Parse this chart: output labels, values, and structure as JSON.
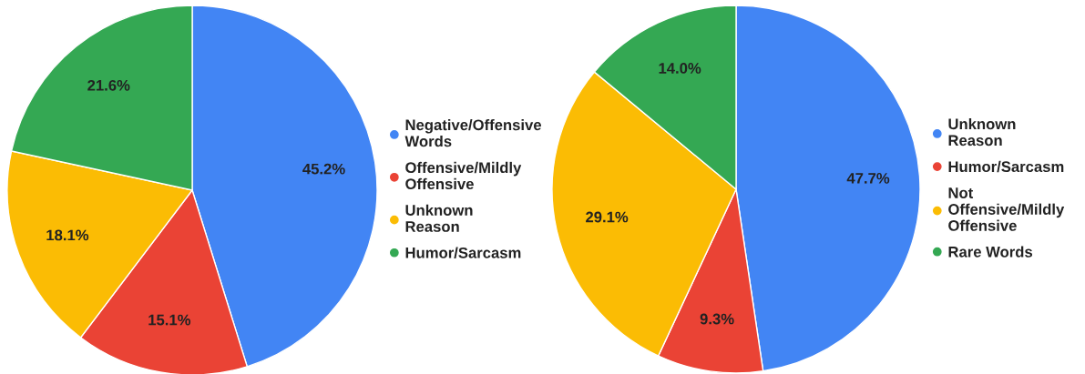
{
  "chart_data": [
    {
      "type": "pie",
      "categories": [
        "Negative/Offensive Words",
        "Offensive/Mildly Offensive",
        "Unknown Reason",
        "Humor/Sarcasm"
      ],
      "values": [
        45.2,
        15.1,
        18.1,
        21.6
      ],
      "value_labels": [
        "45.2%",
        "15.1%",
        "18.1%",
        "21.6%"
      ],
      "colors": [
        "#4285f4",
        "#ea4335",
        "#fbbc04",
        "#34a853"
      ],
      "legend": "right"
    },
    {
      "type": "pie",
      "categories": [
        "Unknown Reason",
        "Humor/Sarcasm",
        "Not Offensive/Mildly Offensive",
        "Rare Words"
      ],
      "values": [
        47.7,
        9.3,
        29.1,
        14.0
      ],
      "value_labels": [
        "47.7%",
        "9.3%",
        "29.1%",
        "14.0%"
      ],
      "colors": [
        "#4285f4",
        "#ea4335",
        "#fbbc04",
        "#34a853"
      ],
      "legend": "right"
    }
  ]
}
